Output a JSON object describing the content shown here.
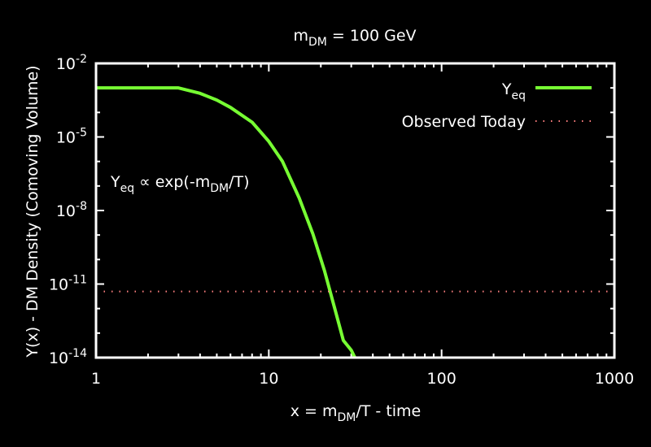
{
  "chart_data": {
    "type": "line",
    "title": {
      "base": "m",
      "sub": "DM",
      "rest": " = 100 GeV"
    },
    "xlabel": {
      "base": "x = m",
      "sub": "DM",
      "rest": "/T - time"
    },
    "ylabel": "Y(x) - DM Density (Comoving Volume)",
    "x_scale": "log",
    "y_scale": "log",
    "xlim": [
      1,
      1000
    ],
    "ylim": [
      1e-14,
      0.01
    ],
    "x_ticks": [
      {
        "value": 1,
        "label": "1"
      },
      {
        "value": 10,
        "label": "10"
      },
      {
        "value": 100,
        "label": "100"
      },
      {
        "value": 1000,
        "label": "1000"
      }
    ],
    "y_ticks": [
      {
        "value": 0.01,
        "base": "10",
        "exp": "-2"
      },
      {
        "value": 1e-05,
        "base": "10",
        "exp": "-5"
      },
      {
        "value": 1e-08,
        "base": "10",
        "exp": "-8"
      },
      {
        "value": 1e-11,
        "base": "10",
        "exp": "-11"
      },
      {
        "value": 1e-14,
        "base": "10",
        "exp": "-14"
      }
    ],
    "grid": false,
    "legend_position": "top-right",
    "annotation": {
      "base": "Y",
      "sub": "eq",
      "mid": " ∝ exp(-m",
      "sub2": "DM",
      "rest": "/T)"
    },
    "series": [
      {
        "name": {
          "base": "Y",
          "sub": "eq"
        },
        "color": "#77ff33",
        "style": "solid",
        "x": [
          1,
          2,
          3,
          4,
          5,
          6,
          8,
          10,
          12,
          15,
          18,
          21,
          24,
          27,
          30,
          31.5
        ],
        "y": [
          0.001,
          0.001,
          0.001,
          0.0006,
          0.00032,
          0.00016,
          4e-05,
          6.6e-06,
          1e-06,
          3.2e-08,
          1.1e-09,
          3.5e-11,
          1.1e-12,
          5e-14,
          2e-14,
          1e-14
        ]
      },
      {
        "name": "Observed Today",
        "color": "#ff7f7f",
        "style": "dotted",
        "x": [
          1,
          1000
        ],
        "y": [
          5e-12,
          5e-12
        ]
      }
    ]
  }
}
